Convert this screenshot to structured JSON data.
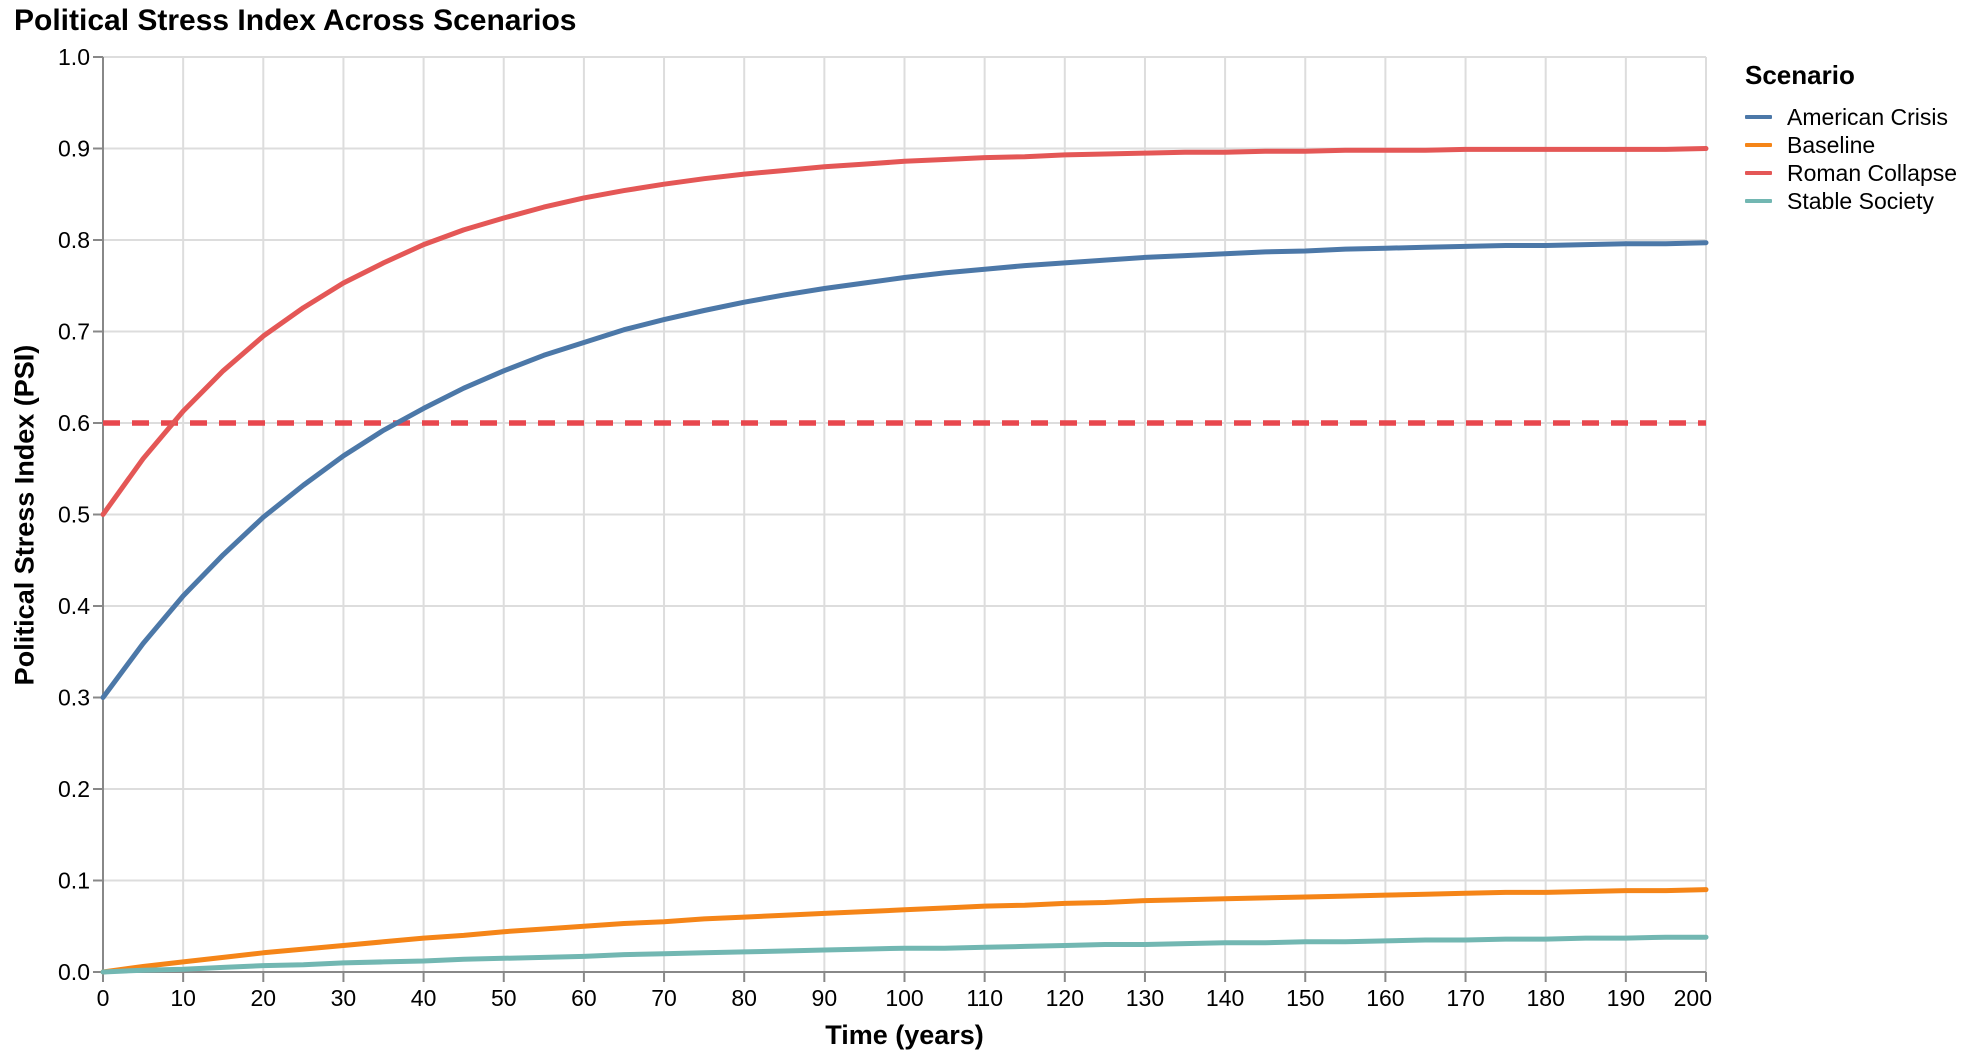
{
  "title": "Political Stress Index Across Scenarios",
  "legend": {
    "title": "Scenario"
  },
  "style": {
    "grid_color": "#dddddd",
    "axis_color": "#888888",
    "text_color": "#000000",
    "background": "#ffffff"
  },
  "chart_data": {
    "type": "line",
    "title": "Political Stress Index Across Scenarios",
    "xlabel": "Time (years)",
    "ylabel": "Political Stress Index (PSI)",
    "xlim": [
      0,
      200
    ],
    "ylim": [
      0.0,
      1.0
    ],
    "x_ticks": [
      0,
      10,
      20,
      30,
      40,
      50,
      60,
      70,
      80,
      90,
      100,
      110,
      120,
      130,
      140,
      150,
      160,
      170,
      180,
      190,
      200
    ],
    "y_ticks": [
      0.0,
      0.1,
      0.2,
      0.3,
      0.4,
      0.5,
      0.6,
      0.7,
      0.8,
      0.9,
      1.0
    ],
    "grid": true,
    "legend_position": "top-right-outside",
    "x": [
      0,
      5,
      10,
      15,
      20,
      25,
      30,
      35,
      40,
      45,
      50,
      55,
      60,
      65,
      70,
      75,
      80,
      85,
      90,
      95,
      100,
      105,
      110,
      115,
      120,
      125,
      130,
      135,
      140,
      145,
      150,
      155,
      160,
      165,
      170,
      175,
      180,
      185,
      190,
      195,
      200
    ],
    "series": [
      {
        "name": "American Crisis",
        "color": "#4c78a8",
        "values": [
          0.3,
          0.359,
          0.411,
          0.456,
          0.497,
          0.532,
          0.564,
          0.592,
          0.616,
          0.638,
          0.657,
          0.674,
          0.688,
          0.702,
          0.713,
          0.723,
          0.732,
          0.74,
          0.747,
          0.753,
          0.759,
          0.764,
          0.768,
          0.772,
          0.775,
          0.778,
          0.781,
          0.783,
          0.785,
          0.787,
          0.788,
          0.79,
          0.791,
          0.792,
          0.793,
          0.794,
          0.794,
          0.795,
          0.796,
          0.796,
          0.797
        ]
      },
      {
        "name": "Baseline",
        "color": "#f58518",
        "values": [
          0.0,
          0.006,
          0.011,
          0.016,
          0.021,
          0.025,
          0.029,
          0.033,
          0.037,
          0.04,
          0.044,
          0.047,
          0.05,
          0.053,
          0.055,
          0.058,
          0.06,
          0.062,
          0.064,
          0.066,
          0.068,
          0.07,
          0.072,
          0.073,
          0.075,
          0.076,
          0.078,
          0.079,
          0.08,
          0.081,
          0.082,
          0.083,
          0.084,
          0.085,
          0.086,
          0.087,
          0.087,
          0.088,
          0.089,
          0.089,
          0.09
        ]
      },
      {
        "name": "Roman Collapse",
        "color": "#e45756",
        "values": [
          0.5,
          0.561,
          0.613,
          0.657,
          0.695,
          0.726,
          0.753,
          0.775,
          0.795,
          0.811,
          0.824,
          0.836,
          0.846,
          0.854,
          0.861,
          0.867,
          0.872,
          0.876,
          0.88,
          0.883,
          0.886,
          0.888,
          0.89,
          0.891,
          0.893,
          0.894,
          0.895,
          0.896,
          0.896,
          0.897,
          0.897,
          0.898,
          0.898,
          0.898,
          0.899,
          0.899,
          0.899,
          0.899,
          0.899,
          0.899,
          0.9
        ]
      },
      {
        "name": "Stable Society",
        "color": "#72b7b2",
        "values": [
          0.0,
          0.002,
          0.003,
          0.005,
          0.007,
          0.008,
          0.01,
          0.011,
          0.012,
          0.014,
          0.015,
          0.016,
          0.017,
          0.019,
          0.02,
          0.021,
          0.022,
          0.023,
          0.024,
          0.025,
          0.026,
          0.026,
          0.027,
          0.028,
          0.029,
          0.03,
          0.03,
          0.031,
          0.032,
          0.032,
          0.033,
          0.033,
          0.034,
          0.035,
          0.035,
          0.036,
          0.036,
          0.037,
          0.037,
          0.038,
          0.038
        ]
      }
    ],
    "threshold": {
      "y": 0.6,
      "color": "#e8474d",
      "style": "dashed"
    }
  }
}
